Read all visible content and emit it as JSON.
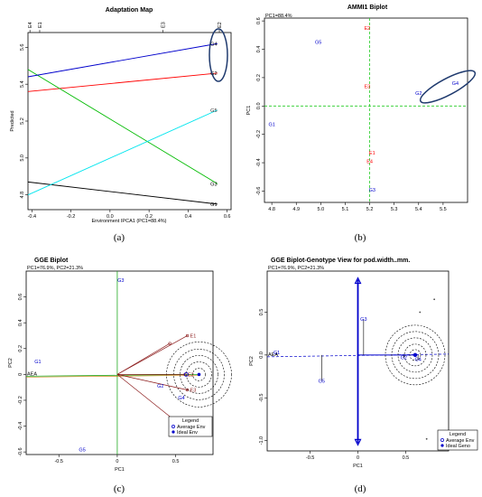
{
  "captions": [
    "(a)",
    "(b)",
    "(c)",
    "(d)"
  ],
  "chart_data": [
    {
      "type": "line",
      "title": "Adaptation Map",
      "xlabel": "Environment IPCA1 (PC1=88.4%)",
      "ylabel": "Predicted",
      "xlim": [
        -0.42,
        0.62
      ],
      "ylim": [
        4.72,
        5.68
      ],
      "x_ticks": [
        "-0.4",
        "-0.2",
        "0.0",
        "0.2",
        "0.4",
        "0.6"
      ],
      "x_tick_values": [
        -0.4,
        -0.2,
        0.0,
        0.2,
        0.4,
        0.6
      ],
      "y_ticks": [
        "4.8",
        "5.0",
        "5.2",
        "5.4",
        "5.6"
      ],
      "y_tick_values": [
        4.8,
        5.0,
        5.2,
        5.4,
        5.6
      ],
      "top_axis_labels": [
        "E4",
        "E1",
        "E3",
        "E2"
      ],
      "top_axis_positions": [
        -0.41,
        -0.36,
        0.27,
        0.56
      ],
      "series": [
        {
          "name": "G1",
          "color": "#000000",
          "x": [
            -0.42,
            0.55
          ],
          "y": [
            4.87,
            4.75
          ]
        },
        {
          "name": "G2",
          "color": "#ff0000",
          "x": [
            -0.42,
            0.55
          ],
          "y": [
            5.36,
            5.46
          ]
        },
        {
          "name": "G3",
          "color": "#00bb00",
          "x": [
            -0.42,
            0.55
          ],
          "y": [
            5.48,
            4.86
          ]
        },
        {
          "name": "G4",
          "color": "#0000cc",
          "x": [
            -0.42,
            0.55
          ],
          "y": [
            5.44,
            5.62
          ]
        },
        {
          "name": "G5",
          "color": "#00e5ee",
          "x": [
            -0.42,
            0.55
          ],
          "y": [
            4.8,
            5.26
          ]
        }
      ]
    },
    {
      "type": "scatter",
      "title": "AMMI1 Biplot",
      "subtitle": "PC1=88.4%",
      "xlabel": "",
      "ylabel": "PC1",
      "xlim": [
        4.77,
        5.6
      ],
      "ylim": [
        -0.68,
        0.62
      ],
      "x_ticks": [
        "4.8",
        "4.9",
        "5.0",
        "5.1",
        "5.2",
        "5.3",
        "5.4",
        "5.5"
      ],
      "x_tick_values": [
        4.8,
        4.9,
        5.0,
        5.1,
        5.2,
        5.3,
        5.4,
        5.5
      ],
      "y_ticks": [
        "-0.6",
        "-0.4",
        "-0.2",
        "0.0",
        "0.2",
        "0.4",
        "0.6"
      ],
      "y_tick_values": [
        -0.6,
        -0.4,
        -0.2,
        0.0,
        0.2,
        0.4,
        0.6
      ],
      "v_ref": 5.2,
      "h_ref": 0.0,
      "points": [
        {
          "label": "E2",
          "x": 5.19,
          "y": 0.55,
          "color": "#ff0000"
        },
        {
          "label": "G5",
          "x": 4.99,
          "y": 0.45,
          "color": "#0000cc"
        },
        {
          "label": "E3",
          "x": 5.19,
          "y": 0.14,
          "color": "#ff0000"
        },
        {
          "label": "G4",
          "x": 5.55,
          "y": 0.16,
          "color": "#0000cc"
        },
        {
          "label": "G2",
          "x": 5.4,
          "y": 0.09,
          "color": "#0000cc"
        },
        {
          "label": "G1",
          "x": 4.8,
          "y": -0.13,
          "color": "#0000cc"
        },
        {
          "label": "E1",
          "x": 5.21,
          "y": -0.33,
          "color": "#ff0000"
        },
        {
          "label": "E4",
          "x": 5.2,
          "y": -0.39,
          "color": "#ff0000"
        },
        {
          "label": "G3",
          "x": 5.21,
          "y": -0.59,
          "color": "#0000cc"
        }
      ]
    },
    {
      "type": "scatter",
      "title": "GGE Biplot",
      "subtitle": "PC1=76.9%, PC2=21.3%",
      "xlabel": "PC1",
      "ylabel": "PC2",
      "xlim": [
        -0.78,
        0.82
      ],
      "ylim": [
        -0.62,
        0.8
      ],
      "x_ticks": [
        "-0.5",
        "0",
        "0.5"
      ],
      "x_tick_values": [
        -0.5,
        0.0,
        0.5
      ],
      "y_ticks": [
        "-0.6",
        "-0.4",
        "-0.2",
        "0",
        "0.2",
        "0.4",
        "0.6"
      ],
      "y_tick_values": [
        -0.6,
        -0.4,
        -0.2,
        0.0,
        0.2,
        0.4,
        0.6
      ],
      "genotypes": [
        {
          "label": "G1",
          "x": -0.68,
          "y": 0.1
        },
        {
          "label": "G2",
          "x": 0.37,
          "y": -0.09
        },
        {
          "label": "G3",
          "x": 0.03,
          "y": 0.73
        },
        {
          "label": "G4",
          "x": 0.55,
          "y": -0.18
        },
        {
          "label": "G5",
          "x": -0.3,
          "y": -0.58
        }
      ],
      "environments": [
        {
          "label": "E1",
          "x": 0.6,
          "y": 0.3
        },
        {
          "label": "E2",
          "x": 0.58,
          "y": 0.0
        },
        {
          "label": "E3",
          "x": 0.6,
          "y": -0.12
        },
        {
          "label": "E4",
          "x": 0.58,
          "y": -0.42
        },
        {
          "label": "",
          "x": 0.45,
          "y": 0.24
        }
      ],
      "aea_label": "AEA",
      "average_env": [
        0.59,
        0.0
      ],
      "ideal_env": [
        0.7,
        0.0
      ],
      "legend_title": "Legend",
      "legend_items": [
        "Average Env",
        "Ideal Env"
      ]
    },
    {
      "type": "scatter",
      "title": "GGE Biplot-Genotype View for pod.width..mm.",
      "subtitle": "PC1=76.9%, PC2=21.3%",
      "xlabel": "PC1",
      "ylabel": "PC2",
      "xlim": [
        -0.95,
        0.95
      ],
      "ylim": [
        -1.12,
        0.98
      ],
      "x_ticks": [
        "-0.5",
        "0",
        "0.5"
      ],
      "x_tick_values": [
        -0.5,
        0.0,
        0.5
      ],
      "y_ticks": [
        "-1.0",
        "-0.5",
        "0.0",
        "0.5"
      ],
      "y_tick_values": [
        -1.0,
        -0.5,
        0.0,
        0.5
      ],
      "genotypes": [
        {
          "label": "G1",
          "x": -0.85,
          "y": 0.03
        },
        {
          "label": "G2",
          "x": 0.48,
          "y": -0.03
        },
        {
          "label": "G3",
          "x": 0.06,
          "y": 0.42
        },
        {
          "label": "G4",
          "x": 0.63,
          "y": -0.05
        },
        {
          "label": "G5",
          "x": -0.38,
          "y": -0.3
        }
      ],
      "environments": [
        {
          "label": "",
          "x": 0.65,
          "y": 0.5
        },
        {
          "label": "",
          "x": 0.72,
          "y": -0.98
        },
        {
          "label": "",
          "x": 0.8,
          "y": 0.65
        }
      ],
      "aea_label": "AEA",
      "ideal_genotype": [
        0.6,
        0.0
      ],
      "legend_title": "Legend",
      "legend_items": [
        "Average Env",
        "Ideal Geno"
      ]
    }
  ]
}
